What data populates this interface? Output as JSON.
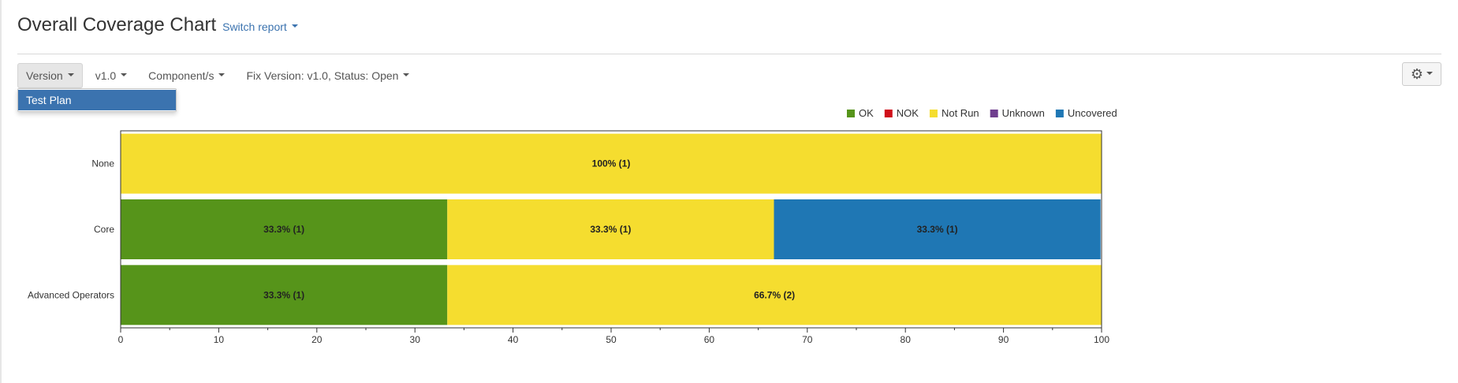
{
  "header": {
    "title": "Overall Coverage Chart",
    "switch_report": "Switch report"
  },
  "toolbar": {
    "group_by": "Version",
    "version": "v1.0",
    "components": "Component/s",
    "filter": "Fix Version: v1.0, Status: Open"
  },
  "dropdown": {
    "items": [
      {
        "label": "Test Plan"
      }
    ]
  },
  "settings": {
    "icon": "gear-icon"
  },
  "chart_data": {
    "type": "bar",
    "orientation": "horizontal",
    "stacked": true,
    "categories": [
      "None",
      "Core",
      "Advanced Operators"
    ],
    "series": [
      {
        "name": "OK",
        "color": "#56941a",
        "values": [
          0,
          33.3,
          33.3
        ],
        "counts": [
          0,
          1,
          1
        ]
      },
      {
        "name": "NOK",
        "color": "#d0101a",
        "values": [
          0,
          0,
          0
        ],
        "counts": [
          0,
          0,
          0
        ]
      },
      {
        "name": "Not Run",
        "color": "#f5dd2f",
        "values": [
          100,
          33.3,
          66.7
        ],
        "counts": [
          1,
          1,
          2
        ]
      },
      {
        "name": "Unknown",
        "color": "#6f3e8e",
        "values": [
          0,
          0,
          0
        ],
        "counts": [
          0,
          0,
          0
        ]
      },
      {
        "name": "Uncovered",
        "color": "#1f77b4",
        "values": [
          0,
          33.3,
          0
        ],
        "counts": [
          0,
          1,
          0
        ]
      }
    ],
    "data_labels": [
      [
        "",
        "",
        "100% (1)",
        "",
        ""
      ],
      [
        "33.3% (1)",
        "",
        "33.3% (1)",
        "",
        "33.3% (1)"
      ],
      [
        "33.3% (1)",
        "",
        "66.7% (2)",
        "",
        ""
      ]
    ],
    "xlim": [
      0,
      100
    ],
    "xticks": [
      0,
      10,
      20,
      30,
      40,
      50,
      60,
      70,
      80,
      90,
      100
    ],
    "legend_position": "top-right",
    "grid": false
  }
}
